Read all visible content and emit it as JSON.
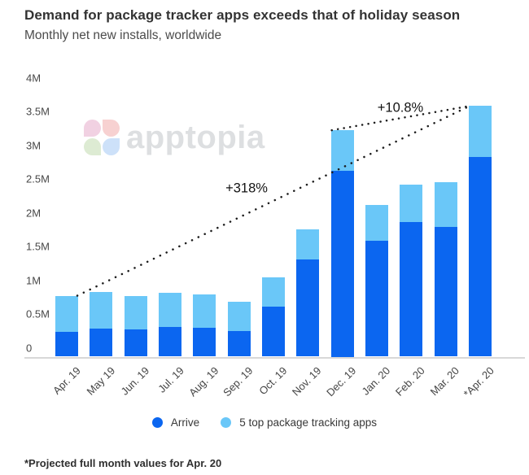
{
  "header": {
    "title": "Demand for package tracker apps exceeds that of holiday season",
    "subtitle": "Monthly net new installs, worldwide"
  },
  "watermark": {
    "text": "apptopia",
    "petal_colors": {
      "top_left": "#efc9dd",
      "top_right": "#f6caca",
      "bottom_left": "#d8e8cc",
      "bottom_right": "#c5dcf8"
    },
    "text_color": "#d8dadc"
  },
  "chart_data": {
    "type": "bar",
    "stacked": true,
    "title": "Demand for package tracker apps exceeds that of holiday season",
    "subtitle": "Monthly net new installs, worldwide",
    "unit": "millions of installs",
    "categories": [
      "Apr. 19",
      "May 19",
      "Jun. 19",
      "Jul. 19",
      "Aug. 19",
      "Sep. 19",
      "Oct. 19",
      "Nov. 19",
      "Dec. 19",
      "Jan. 20",
      "Feb. 20",
      "Mar. 20",
      "*Apr. 20"
    ],
    "series": [
      {
        "name": "Arrive",
        "color": "#0b66f0",
        "values_millions": [
          0.34,
          0.39,
          0.37,
          0.41,
          0.4,
          0.35,
          0.7,
          1.38,
          2.66,
          1.65,
          1.92,
          1.85,
          2.86
        ]
      },
      {
        "name": "5 top package tracking apps",
        "color": "#6ac7f8",
        "values_millions": [
          0.52,
          0.52,
          0.48,
          0.49,
          0.48,
          0.42,
          0.43,
          0.44,
          0.59,
          0.52,
          0.54,
          0.65,
          0.74
        ]
      }
    ],
    "totals_millions": [
      0.86,
      0.91,
      0.85,
      0.9,
      0.88,
      0.77,
      1.13,
      1.82,
      3.25,
      2.17,
      2.46,
      2.5,
      3.6
    ],
    "y_ticks": [
      "4M",
      "3.5M",
      "3M",
      "2.5M",
      "2M",
      "1.5M",
      "1M",
      "0.5M",
      "0"
    ],
    "ylim_millions": [
      0,
      4
    ],
    "grid": false,
    "legend_position": "bottom",
    "annotations": [
      {
        "label": "+318%",
        "type": "dotted-line",
        "from_category": "Apr. 19",
        "to_category": "*Apr. 20"
      },
      {
        "label": "+10.8%",
        "type": "dotted-line",
        "from_category": "Dec. 19",
        "to_category": "*Apr. 20"
      }
    ],
    "dot_color": "#1c1c1c",
    "axis_color": "#d8d8d8"
  },
  "footnote": {
    "text": "*Projected full month values for Apr. 20"
  }
}
